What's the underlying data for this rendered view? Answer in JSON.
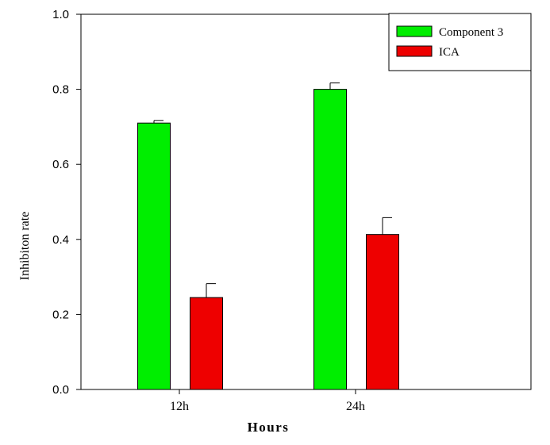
{
  "chart_data": {
    "type": "bar",
    "categories": [
      "12h",
      "24h"
    ],
    "series": [
      {
        "name": "Component 3",
        "values": [
          0.71,
          0.8
        ],
        "errors": [
          0.007,
          0.017
        ],
        "color": "#00ee00"
      },
      {
        "name": "ICA",
        "values": [
          0.245,
          0.413
        ],
        "errors": [
          0.037,
          0.045
        ],
        "color": "#ee0000"
      }
    ],
    "xlabel": "Hours",
    "ylabel": "Inhibiton rate",
    "ylim": [
      0,
      1.0
    ],
    "yticks": [
      "0.0",
      "0.2",
      "0.4",
      "0.6",
      "0.8",
      "1.0"
    ],
    "grid": false,
    "legend_position": "top-right"
  }
}
